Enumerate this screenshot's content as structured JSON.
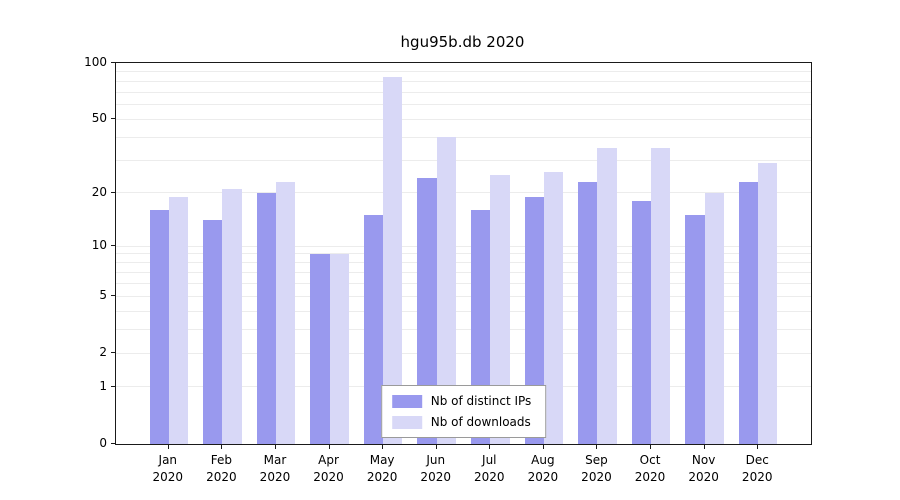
{
  "chart_data": {
    "type": "bar",
    "title": "hgu95b.db 2020",
    "scale": "log10(value+1)",
    "ylim": [
      0,
      100
    ],
    "yticks": [
      0,
      1,
      2,
      5,
      10,
      20,
      50,
      100
    ],
    "gridlines": [
      1,
      2,
      3,
      4,
      5,
      6,
      7,
      8,
      9,
      10,
      20,
      30,
      40,
      50,
      60,
      70,
      80,
      90
    ],
    "categories": [
      "Jan",
      "Feb",
      "Mar",
      "Apr",
      "May",
      "Jun",
      "Jul",
      "Aug",
      "Sep",
      "Oct",
      "Nov",
      "Dec"
    ],
    "year": "2020",
    "series": [
      {
        "name": "Nb of distinct IPs",
        "color": "#9999ee",
        "values": [
          16,
          14,
          20,
          9,
          15,
          24,
          16,
          19,
          23,
          18,
          15,
          23
        ]
      },
      {
        "name": "Nb of downloads",
        "color": "#d8d8f7",
        "values": [
          19,
          21,
          23,
          9,
          84,
          40,
          25,
          26,
          35,
          35,
          20,
          29
        ]
      }
    ],
    "legend_position": "bottom-center",
    "grid": "horizontal-only"
  }
}
